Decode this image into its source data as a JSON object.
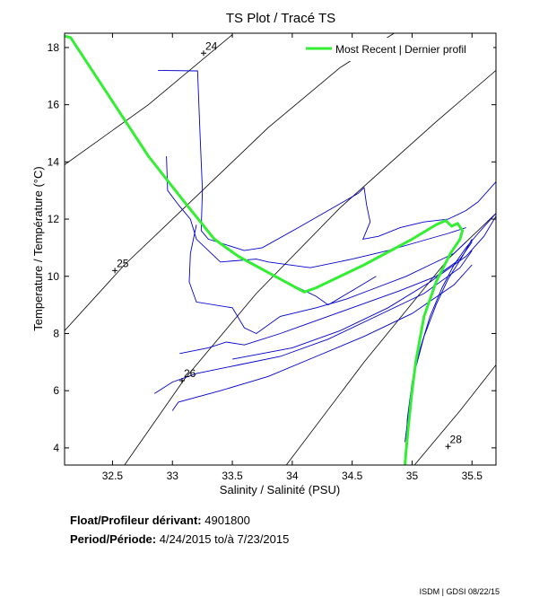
{
  "chart_data": {
    "type": "line",
    "title": "TS Plot / Tracé TS",
    "xlabel": "Salinity / Salinité (PSU)",
    "ylabel": "Temperature / Température (°C)",
    "xlim": [
      32.1,
      35.7
    ],
    "ylim": [
      3.4,
      18.5
    ],
    "xticks": [
      32.5,
      33,
      33.5,
      34,
      34.5,
      35,
      35.5
    ],
    "yticks": [
      4,
      6,
      8,
      10,
      12,
      14,
      16,
      18
    ],
    "legend": {
      "position": "top-right"
    },
    "density_contours": [
      {
        "label": "24",
        "label_point": [
          33.26,
          17.8
        ],
        "points": [
          [
            32.1,
            13.9
          ],
          [
            32.8,
            16.0
          ],
          [
            33.5,
            18.45
          ]
        ]
      },
      {
        "label": "25",
        "label_point": [
          32.52,
          10.2
        ],
        "points": [
          [
            32.1,
            8.1
          ],
          [
            32.6,
            10.4
          ],
          [
            33.2,
            12.8
          ],
          [
            33.8,
            15.2
          ],
          [
            34.4,
            17.3
          ],
          [
            34.85,
            18.5
          ]
        ]
      },
      {
        "label": "26",
        "label_point": [
          33.08,
          6.35
        ],
        "points": [
          [
            32.6,
            3.4
          ],
          [
            33.1,
            6.4
          ],
          [
            33.7,
            9.4
          ],
          [
            34.4,
            12.4
          ],
          [
            35.2,
            15.4
          ],
          [
            35.7,
            17.2
          ]
        ]
      },
      {
        "label": "",
        "label_point": null,
        "points": [
          [
            33.95,
            3.4
          ],
          [
            34.6,
            7.0
          ],
          [
            35.3,
            10.6
          ],
          [
            35.7,
            12.2
          ]
        ]
      },
      {
        "label": "28",
        "label_point": [
          35.3,
          4.05
        ],
        "points": [
          [
            35.02,
            3.4
          ],
          [
            35.4,
            5.3
          ],
          [
            35.7,
            6.9
          ]
        ]
      }
    ],
    "series": [
      {
        "name": "",
        "color": "#0000cc",
        "segments": [
          [
            [
              32.88,
              17.2
            ],
            [
              33.21,
              17.18
            ],
            [
              33.23,
              15.0
            ],
            [
              33.25,
              13.0
            ],
            [
              33.24,
              11.6
            ],
            [
              33.3,
              11.3
            ],
            [
              33.6,
              10.9
            ],
            [
              33.75,
              11.0
            ],
            [
              34.05,
              11.7
            ],
            [
              34.3,
              12.3
            ],
            [
              34.55,
              12.9
            ],
            [
              34.6,
              13.1
            ],
            [
              34.62,
              12.5
            ],
            [
              34.65,
              11.9
            ],
            [
              34.59,
              11.3
            ],
            [
              34.72,
              11.4
            ],
            [
              34.9,
              11.7
            ],
            [
              35.1,
              11.9
            ],
            [
              35.3,
              12.0
            ],
            [
              35.45,
              12.3
            ],
            [
              35.55,
              12.6
            ],
            [
              35.7,
              13.3
            ]
          ],
          [
            [
              32.95,
              14.2
            ],
            [
              32.96,
              13.0
            ],
            [
              33.05,
              12.5
            ],
            [
              33.15,
              12.0
            ],
            [
              33.2,
              11.3
            ],
            [
              33.4,
              10.5
            ],
            [
              33.7,
              10.6
            ],
            [
              33.8,
              10.5
            ],
            [
              34.15,
              10.3
            ],
            [
              34.5,
              10.6
            ],
            [
              34.8,
              10.9
            ],
            [
              35.05,
              11.2
            ],
            [
              35.3,
              11.5
            ],
            [
              35.45,
              11.7
            ]
          ],
          [
            [
              33.2,
              11.8
            ],
            [
              33.15,
              10.8
            ],
            [
              33.14,
              9.8
            ],
            [
              33.2,
              9.1
            ],
            [
              33.5,
              8.9
            ],
            [
              33.6,
              8.2
            ],
            [
              33.7,
              8.0
            ],
            [
              33.9,
              8.6
            ],
            [
              34.2,
              8.9
            ],
            [
              34.45,
              9.2
            ],
            [
              34.7,
              9.6
            ],
            [
              34.95,
              10.0
            ],
            [
              35.15,
              10.4
            ],
            [
              35.35,
              10.8
            ],
            [
              35.45,
              11.2
            ]
          ],
          [
            [
              33.06,
              7.3
            ],
            [
              33.3,
              7.5
            ],
            [
              33.45,
              7.7
            ],
            [
              33.6,
              7.6
            ],
            [
              33.9,
              8.0
            ],
            [
              34.1,
              8.3
            ],
            [
              34.5,
              8.9
            ],
            [
              34.9,
              9.5
            ],
            [
              35.2,
              10.0
            ],
            [
              35.4,
              10.6
            ],
            [
              35.5,
              11.2
            ]
          ],
          [
            [
              32.85,
              5.9
            ],
            [
              33.0,
              6.3
            ],
            [
              33.2,
              6.6
            ],
            [
              33.55,
              6.9
            ],
            [
              33.9,
              7.2
            ],
            [
              34.3,
              7.8
            ],
            [
              34.7,
              8.6
            ],
            [
              35.1,
              9.4
            ],
            [
              35.4,
              10.3
            ],
            [
              35.5,
              10.9
            ]
          ],
          [
            [
              33.0,
              5.3
            ],
            [
              33.05,
              5.6
            ],
            [
              33.4,
              6.0
            ],
            [
              33.8,
              6.5
            ],
            [
              34.2,
              7.2
            ],
            [
              34.6,
              7.9
            ],
            [
              35.0,
              8.7
            ],
            [
              35.35,
              9.7
            ],
            [
              35.5,
              10.4
            ]
          ],
          [
            [
              33.5,
              7.1
            ],
            [
              34.0,
              7.5
            ],
            [
              34.4,
              8.1
            ],
            [
              34.8,
              8.9
            ],
            [
              35.15,
              9.8
            ],
            [
              35.45,
              10.7
            ],
            [
              35.6,
              11.4
            ],
            [
              35.7,
              12.1
            ]
          ],
          [
            [
              34.0,
              9.7
            ],
            [
              34.2,
              9.3
            ],
            [
              34.3,
              9.0
            ],
            [
              34.5,
              9.5
            ],
            [
              34.7,
              10.0
            ]
          ],
          [
            [
              34.95,
              3.8
            ],
            [
              34.96,
              5.0
            ],
            [
              35.0,
              6.3
            ],
            [
              35.07,
              7.5
            ],
            [
              35.15,
              8.6
            ],
            [
              35.25,
              9.6
            ],
            [
              35.35,
              10.4
            ],
            [
              35.45,
              11.0
            ],
            [
              35.55,
              11.5
            ],
            [
              35.7,
              12.2
            ]
          ],
          [
            [
              34.94,
              4.2
            ],
            [
              34.98,
              5.5
            ],
            [
              35.03,
              6.8
            ],
            [
              35.1,
              7.9
            ],
            [
              35.2,
              9.0
            ],
            [
              35.3,
              9.9
            ],
            [
              35.42,
              10.7
            ],
            [
              35.5,
              11.3
            ]
          ]
        ]
      },
      {
        "name": "Most Recent | Dernier profil",
        "color": "#33ee33",
        "points": [
          [
            32.1,
            18.4
          ],
          [
            32.15,
            18.35
          ],
          [
            32.8,
            14.2
          ],
          [
            33.1,
            12.6
          ],
          [
            33.35,
            11.3
          ],
          [
            33.55,
            10.7
          ],
          [
            34.1,
            9.45
          ],
          [
            34.2,
            9.6
          ],
          [
            34.6,
            10.4
          ],
          [
            35.0,
            11.3
          ],
          [
            35.2,
            11.8
          ],
          [
            35.28,
            11.95
          ],
          [
            35.33,
            11.75
          ],
          [
            35.38,
            11.85
          ],
          [
            35.42,
            11.6
          ],
          [
            35.4,
            11.3
          ],
          [
            35.32,
            10.8
          ],
          [
            35.2,
            9.8
          ],
          [
            35.1,
            8.6
          ],
          [
            35.03,
            7.0
          ],
          [
            35.0,
            6.0
          ],
          [
            34.97,
            4.8
          ],
          [
            34.95,
            3.9
          ],
          [
            34.94,
            3.4
          ]
        ]
      }
    ]
  },
  "info": {
    "float_label": "Float/Profileur dérivant:",
    "float_value": "4901800",
    "period_label": "Period/Période:",
    "period_from": "4/24/2015",
    "period_to_label": "to/à",
    "period_to": "7/23/2015"
  },
  "footer": "ISDM | GDSI  08/22/15"
}
